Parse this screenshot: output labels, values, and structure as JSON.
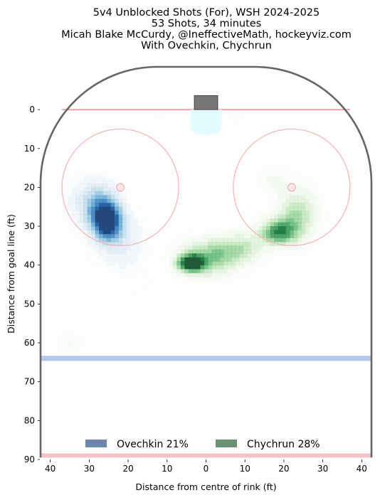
{
  "chart_data": {
    "type": "heatmap",
    "title_lines": [
      "5v4 Unblocked Shots (For), WSH 2024-2025",
      "53 Shots, 34 minutes",
      "Micah Blake McCurdy, @IneffectiveMath, hockeyviz.com",
      "With Ovechkin, Chychrun"
    ],
    "xlabel": "Distance from centre of rink (ft)",
    "ylabel": "Distance from goal line (ft)",
    "xlim": [
      -42.5,
      42.5
    ],
    "ylim": [
      90,
      -11
    ],
    "x_ticks": [
      {
        "value": -40,
        "label": "40"
      },
      {
        "value": -30,
        "label": "30"
      },
      {
        "value": -20,
        "label": "20"
      },
      {
        "value": -10,
        "label": "10"
      },
      {
        "value": 0,
        "label": "0"
      },
      {
        "value": 10,
        "label": "10"
      },
      {
        "value": 20,
        "label": "20"
      },
      {
        "value": 30,
        "label": "30"
      },
      {
        "value": 40,
        "label": "40"
      }
    ],
    "y_ticks": [
      0,
      10,
      20,
      30,
      40,
      50,
      60,
      70,
      80,
      90
    ],
    "rink": {
      "goal_line_y": 0,
      "blue_line_y": 64,
      "centre_line_y": 89,
      "faceoff_circles": [
        {
          "x": -22,
          "y": 20,
          "r": 15
        },
        {
          "x": 22,
          "y": 20,
          "r": 15
        }
      ],
      "faceoff_dots": [
        {
          "x": -22,
          "y": 20
        },
        {
          "x": 22,
          "y": 20
        }
      ]
    },
    "series": [
      {
        "name": "Ovechkin 21%",
        "label": "Ovechkin 21%",
        "color": "#08306b",
        "blobs": [
          {
            "x": -25.5,
            "y": 28.5,
            "sx": 2.6,
            "sy": 3.4,
            "w": 1.0
          },
          {
            "x": -28.5,
            "y": 24,
            "sx": 4.0,
            "sy": 4.2,
            "w": 0.45
          },
          {
            "x": -22,
            "y": 34,
            "sx": 4.5,
            "sy": 5.0,
            "w": 0.25
          },
          {
            "x": -17,
            "y": 45,
            "sx": 3.5,
            "sy": 3.0,
            "w": 0.05
          },
          {
            "x": -12,
            "y": 1,
            "sx": 3.0,
            "sy": 1.6,
            "w": 0.05
          }
        ]
      },
      {
        "name": "Chychrun 28%",
        "label": "Chychrun 28%",
        "color": "#00441b",
        "blobs": [
          {
            "x": -4,
            "y": 39.5,
            "sx": 2.4,
            "sy": 1.6,
            "w": 0.95
          },
          {
            "x": 1,
            "y": 38,
            "sx": 5.0,
            "sy": 3.2,
            "w": 0.55
          },
          {
            "x": 9,
            "y": 35.5,
            "sx": 4.0,
            "sy": 2.6,
            "w": 0.35
          },
          {
            "x": 18.5,
            "y": 31.5,
            "sx": 3.2,
            "sy": 2.3,
            "w": 0.75
          },
          {
            "x": 23.5,
            "y": 27,
            "sx": 3.4,
            "sy": 4.5,
            "w": 0.45
          },
          {
            "x": 17,
            "y": 18,
            "sx": 3.0,
            "sy": 2.5,
            "w": 0.12
          },
          {
            "x": -35,
            "y": 60,
            "sx": 2.5,
            "sy": 1.8,
            "w": 0.12
          },
          {
            "x": 8,
            "y": 1.5,
            "sx": 2.5,
            "sy": 1.8,
            "w": 0.07
          }
        ]
      }
    ],
    "legend": {
      "placement": "bottom-center",
      "items": [
        "Ovechkin 21%",
        "Chychrun 28%"
      ]
    }
  }
}
